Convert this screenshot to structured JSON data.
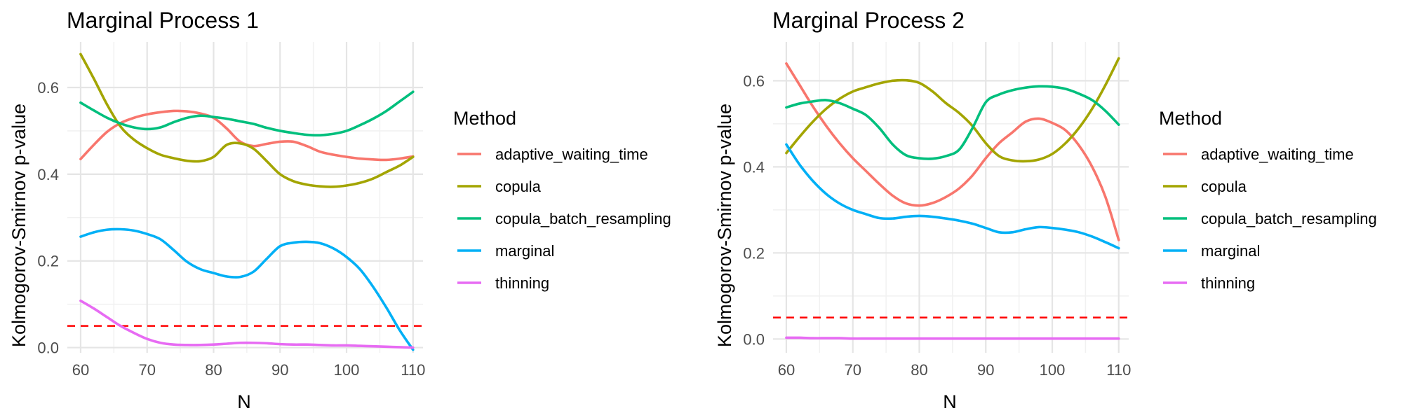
{
  "chart_data": [
    {
      "type": "line",
      "title": "Marginal Process 1",
      "xlabel": "N",
      "ylabel": "Kolmogorov-Smirnov p-value",
      "xlim": [
        58,
        111.5
      ],
      "ylim": [
        -0.012,
        0.705
      ],
      "xticks": [
        60,
        70,
        80,
        90,
        100,
        110
      ],
      "xtick_labels": [
        "60",
        "70",
        "80",
        "90",
        "100",
        "110"
      ],
      "yticks": [
        0.0,
        0.2,
        0.4,
        0.6
      ],
      "ytick_labels": [
        "0.0",
        "0.2",
        "0.4",
        "0.6"
      ],
      "grid": true,
      "legend": "right",
      "legend_title": "Method",
      "reference_line": {
        "y": 0.05,
        "style": "dashed",
        "color": "#ff0000"
      },
      "x": [
        60,
        62,
        64,
        66,
        68,
        70,
        72,
        74,
        76,
        78,
        80,
        82,
        84,
        86,
        88,
        90,
        92,
        94,
        96,
        98,
        100,
        102,
        104,
        106,
        108,
        110
      ],
      "series": [
        {
          "name": "adaptive_waiting_time",
          "color": "#F8766D",
          "values": [
            0.435,
            0.468,
            0.498,
            0.518,
            0.53,
            0.538,
            0.543,
            0.546,
            0.545,
            0.54,
            0.53,
            0.505,
            0.475,
            0.465,
            0.47,
            0.475,
            0.475,
            0.465,
            0.452,
            0.445,
            0.44,
            0.436,
            0.434,
            0.433,
            0.436,
            0.441
          ]
        },
        {
          "name": "copula",
          "color": "#A3A500",
          "values": [
            0.677,
            0.62,
            0.56,
            0.51,
            0.48,
            0.46,
            0.445,
            0.437,
            0.431,
            0.43,
            0.44,
            0.468,
            0.471,
            0.459,
            0.43,
            0.4,
            0.384,
            0.376,
            0.372,
            0.371,
            0.374,
            0.38,
            0.39,
            0.405,
            0.42,
            0.44
          ]
        },
        {
          "name": "copula_batch_resampling",
          "color": "#00BF7D",
          "values": [
            0.565,
            0.547,
            0.53,
            0.517,
            0.508,
            0.504,
            0.508,
            0.52,
            0.53,
            0.535,
            0.532,
            0.528,
            0.522,
            0.516,
            0.507,
            0.5,
            0.495,
            0.491,
            0.49,
            0.493,
            0.5,
            0.513,
            0.528,
            0.546,
            0.568,
            0.59
          ]
        },
        {
          "name": "marginal",
          "color": "#00B0F6",
          "values": [
            0.256,
            0.266,
            0.272,
            0.273,
            0.27,
            0.262,
            0.25,
            0.225,
            0.198,
            0.181,
            0.172,
            0.164,
            0.163,
            0.175,
            0.205,
            0.234,
            0.242,
            0.244,
            0.241,
            0.229,
            0.209,
            0.181,
            0.14,
            0.092,
            0.04,
            -0.005
          ]
        },
        {
          "name": "thinning",
          "color": "#E76BF3",
          "values": [
            0.108,
            0.09,
            0.07,
            0.05,
            0.034,
            0.02,
            0.011,
            0.007,
            0.006,
            0.006,
            0.007,
            0.009,
            0.011,
            0.011,
            0.01,
            0.008,
            0.007,
            0.007,
            0.006,
            0.005,
            0.005,
            0.004,
            0.003,
            0.002,
            0.001,
            0.0
          ]
        }
      ]
    },
    {
      "type": "line",
      "title": "Marginal Process 2",
      "xlabel": "N",
      "ylabel": "Kolmogorov-Smirnov p-value",
      "xlim": [
        58,
        111.5
      ],
      "ylim": [
        -0.032,
        0.69
      ],
      "xticks": [
        60,
        70,
        80,
        90,
        100,
        110
      ],
      "xtick_labels": [
        "60",
        "70",
        "80",
        "90",
        "100",
        "110"
      ],
      "yticks": [
        0.0,
        0.2,
        0.4,
        0.6
      ],
      "ytick_labels": [
        "0.0",
        "0.2",
        "0.4",
        "0.6"
      ],
      "grid": true,
      "legend": "right",
      "legend_title": "Method",
      "reference_line": {
        "y": 0.05,
        "style": "dashed",
        "color": "#ff0000"
      },
      "x": [
        60,
        62,
        64,
        66,
        68,
        70,
        72,
        74,
        76,
        78,
        80,
        82,
        84,
        86,
        88,
        90,
        92,
        94,
        96,
        98,
        100,
        102,
        104,
        106,
        108,
        110
      ],
      "series": [
        {
          "name": "adaptive_waiting_time",
          "color": "#F8766D",
          "values": [
            0.64,
            0.59,
            0.54,
            0.495,
            0.455,
            0.42,
            0.39,
            0.36,
            0.333,
            0.315,
            0.31,
            0.316,
            0.33,
            0.35,
            0.38,
            0.42,
            0.455,
            0.48,
            0.505,
            0.512,
            0.502,
            0.485,
            0.45,
            0.4,
            0.33,
            0.23
          ]
        },
        {
          "name": "copula",
          "color": "#A3A500",
          "values": [
            0.432,
            0.47,
            0.505,
            0.535,
            0.558,
            0.575,
            0.585,
            0.594,
            0.6,
            0.601,
            0.595,
            0.575,
            0.548,
            0.525,
            0.495,
            0.455,
            0.425,
            0.415,
            0.413,
            0.417,
            0.43,
            0.455,
            0.49,
            0.535,
            0.59,
            0.652
          ]
        },
        {
          "name": "copula_batch_resampling",
          "color": "#00BF7D",
          "values": [
            0.538,
            0.547,
            0.552,
            0.555,
            0.548,
            0.535,
            0.52,
            0.49,
            0.452,
            0.427,
            0.42,
            0.419,
            0.425,
            0.44,
            0.49,
            0.55,
            0.568,
            0.578,
            0.584,
            0.587,
            0.586,
            0.581,
            0.57,
            0.555,
            0.53,
            0.498
          ]
        },
        {
          "name": "marginal",
          "color": "#00B0F6",
          "values": [
            0.452,
            0.405,
            0.367,
            0.337,
            0.315,
            0.3,
            0.29,
            0.281,
            0.28,
            0.284,
            0.286,
            0.284,
            0.28,
            0.275,
            0.268,
            0.258,
            0.248,
            0.248,
            0.255,
            0.26,
            0.258,
            0.254,
            0.248,
            0.238,
            0.225,
            0.211
          ]
        },
        {
          "name": "thinning",
          "color": "#E76BF3",
          "values": [
            0.003,
            0.003,
            0.002,
            0.002,
            0.002,
            0.001,
            0.001,
            0.001,
            0.001,
            0.001,
            0.001,
            0.001,
            0.001,
            0.001,
            0.001,
            0.001,
            0.001,
            0.001,
            0.001,
            0.001,
            0.001,
            0.001,
            0.001,
            0.001,
            0.001,
            0.001
          ]
        }
      ]
    }
  ]
}
